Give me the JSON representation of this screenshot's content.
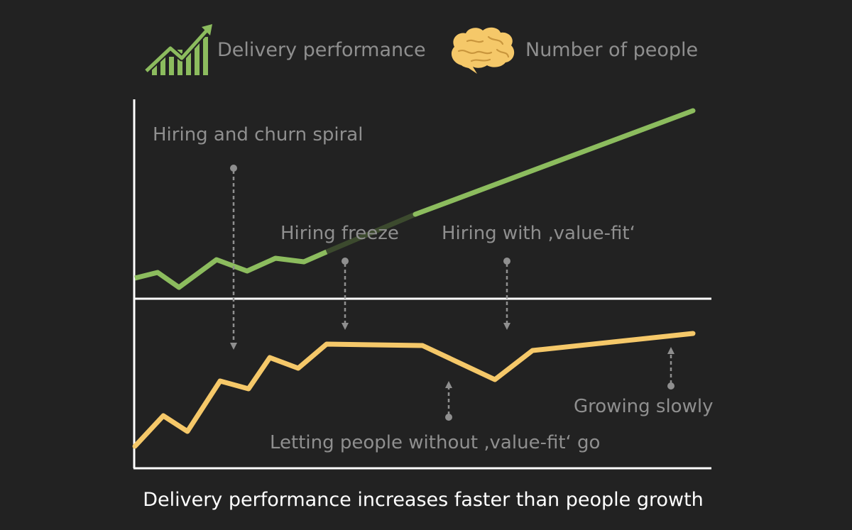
{
  "legend": {
    "performance": {
      "label": "Delivery performance",
      "icon": "growth-chart-icon",
      "color": "#8cbc5e"
    },
    "people": {
      "label": "Number of people",
      "icon": "brain-icon",
      "color": "#f5c869"
    }
  },
  "annotations": {
    "hiring_churn": "Hiring and churn spiral",
    "hiring_freeze": "Hiring freeze",
    "hiring_value_fit": "Hiring with ‚value-fit‘",
    "letting_go": "Letting people without ‚value-fit‘ go",
    "growing_slowly": "Growing slowly"
  },
  "caption": "Delivery performance increases faster than people growth",
  "colors": {
    "background": "#222222",
    "axis": "#ffffff",
    "annotation": "#8f8f8f",
    "performance": "#8cbc5e",
    "people": "#f5c869"
  }
}
